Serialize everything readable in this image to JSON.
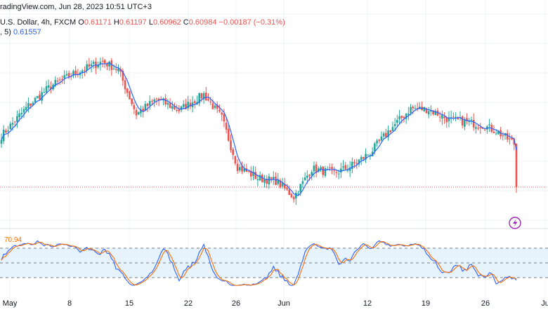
{
  "header": {
    "watermark_line": "radingView.com, Jun 28, 2023 10:51 UTC+3",
    "symbol": "U.S. Dollar, 4h, FXCM",
    "o_label": "O",
    "o_value": "0.61171",
    "h_label": "H",
    "h_value": "0.61197",
    "l_label": "L",
    "l_value": "0.60962",
    "c_label": "C",
    "c_value": "0.60984",
    "change": "−0.00187 (−0.31%)",
    "ma_label": ", 5)",
    "ma_value": "0.61557"
  },
  "stoch_label": "70.94",
  "colors": {
    "up": "#26a69a",
    "down": "#ef5350",
    "ma": "#2962ff",
    "k": "#2962ff",
    "d": "#ff6d00",
    "band": "#e3f2fd"
  },
  "chart_data": {
    "type": "candlestick",
    "price_ylim": [
      0.607,
      0.626
    ],
    "stoch_ylim": [
      0,
      100
    ],
    "stoch_levels": [
      80,
      50,
      20
    ],
    "last_price_line": 0.60984,
    "x_ticks": [
      "May",
      "8",
      "15",
      "22",
      "26",
      "Jun",
      "12",
      "19",
      "26",
      "Ju"
    ],
    "anchors": [
      [
        0,
        0.6153
      ],
      [
        12,
        0.6185
      ],
      [
        22,
        0.6206
      ],
      [
        33,
        0.622
      ],
      [
        45,
        0.6232
      ],
      [
        52,
        0.6223
      ],
      [
        60,
        0.6176
      ],
      [
        69,
        0.6192
      ],
      [
        79,
        0.618
      ],
      [
        90,
        0.6197
      ],
      [
        98,
        0.6172
      ],
      [
        105,
        0.612
      ],
      [
        114,
        0.6108
      ],
      [
        122,
        0.6105
      ],
      [
        130,
        0.6088
      ],
      [
        138,
        0.6118
      ],
      [
        148,
        0.6113
      ],
      [
        155,
        0.612
      ],
      [
        164,
        0.6135
      ],
      [
        173,
        0.616
      ],
      [
        182,
        0.6182
      ],
      [
        190,
        0.6181
      ],
      [
        199,
        0.617
      ],
      [
        206,
        0.6168
      ],
      [
        214,
        0.6164
      ],
      [
        220,
        0.6158
      ],
      [
        229,
        0.6143
      ]
    ]
  }
}
